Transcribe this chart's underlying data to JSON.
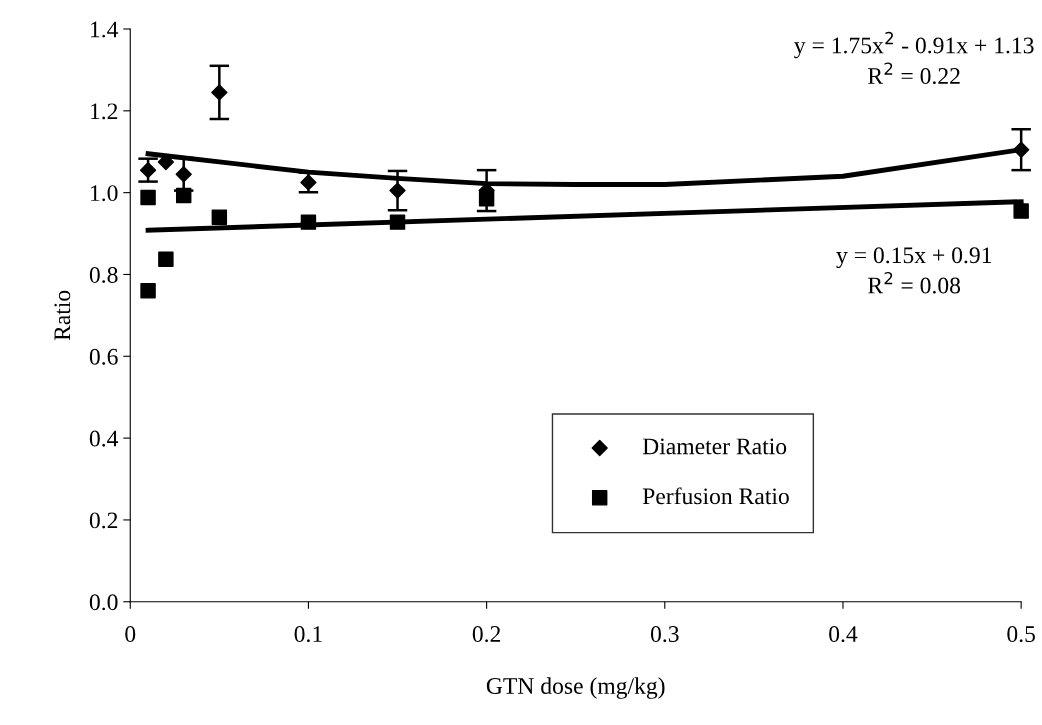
{
  "chart_data": {
    "type": "scatter",
    "xlabel": "GTN dose (mg/kg)",
    "ylabel": "Ratio",
    "xlim": [
      0,
      0.5
    ],
    "xticks": [
      0,
      0.1,
      0.2,
      0.3,
      0.4,
      0.5
    ],
    "ylim": [
      0.0,
      1.4
    ],
    "yticks": [
      {
        "value": 0,
        "label": "0.0"
      },
      0.2,
      0.4,
      0.6,
      0.8,
      {
        "value": 1,
        "label": "1.0"
      },
      1.2,
      1.4
    ],
    "grid": false,
    "legend": "bottom right",
    "series": [
      {
        "name": "Diameter Ratio",
        "color": "#000000",
        "marker": "diamond",
        "x": [
          0.01,
          0.02,
          0.03,
          0.05,
          0.1,
          0.15,
          0.2,
          0.5
        ],
        "values": [
          1.055,
          1.075,
          1.045,
          1.245,
          1.025,
          1.005,
          1.005,
          1.105
        ],
        "errors": [
          0.028,
          null,
          0.04,
          0.065,
          0.024,
          0.048,
          0.05,
          0.05
        ]
      },
      {
        "name": "Perfusion Ratio",
        "color": "#000000",
        "marker": "square",
        "x": [
          0.01,
          0.01,
          0.02,
          0.03,
          0.05,
          0.1,
          0.15,
          0.2,
          0.5
        ],
        "values": [
          0.76,
          0.988,
          0.837,
          0.993,
          0.94,
          0.928,
          0.928,
          0.985,
          0.955
        ]
      },
      {
        "type": "line",
        "color": "#000000",
        "marker": "none",
        "x": [
          0.01,
          0.05,
          0.1,
          0.15,
          0.2,
          0.25,
          0.3,
          0.4,
          0.5
        ],
        "values": [
          1.095,
          1.075,
          1.05,
          1.035,
          1.022,
          1.02,
          1.02,
          1.04,
          1.105
        ]
      },
      {
        "type": "line",
        "color": "#000000",
        "marker": "none",
        "x": [
          0.01,
          0.5
        ],
        "values": [
          0.908,
          0.978
        ]
      }
    ],
    "annotations": [
      "y = 1.75x$^{2}$ - 0.91x + 1.13\nR$^{2}$ = 0.22",
      "y = 0.15x + 0.91\nR$^{2}$ = 0.08"
    ]
  }
}
